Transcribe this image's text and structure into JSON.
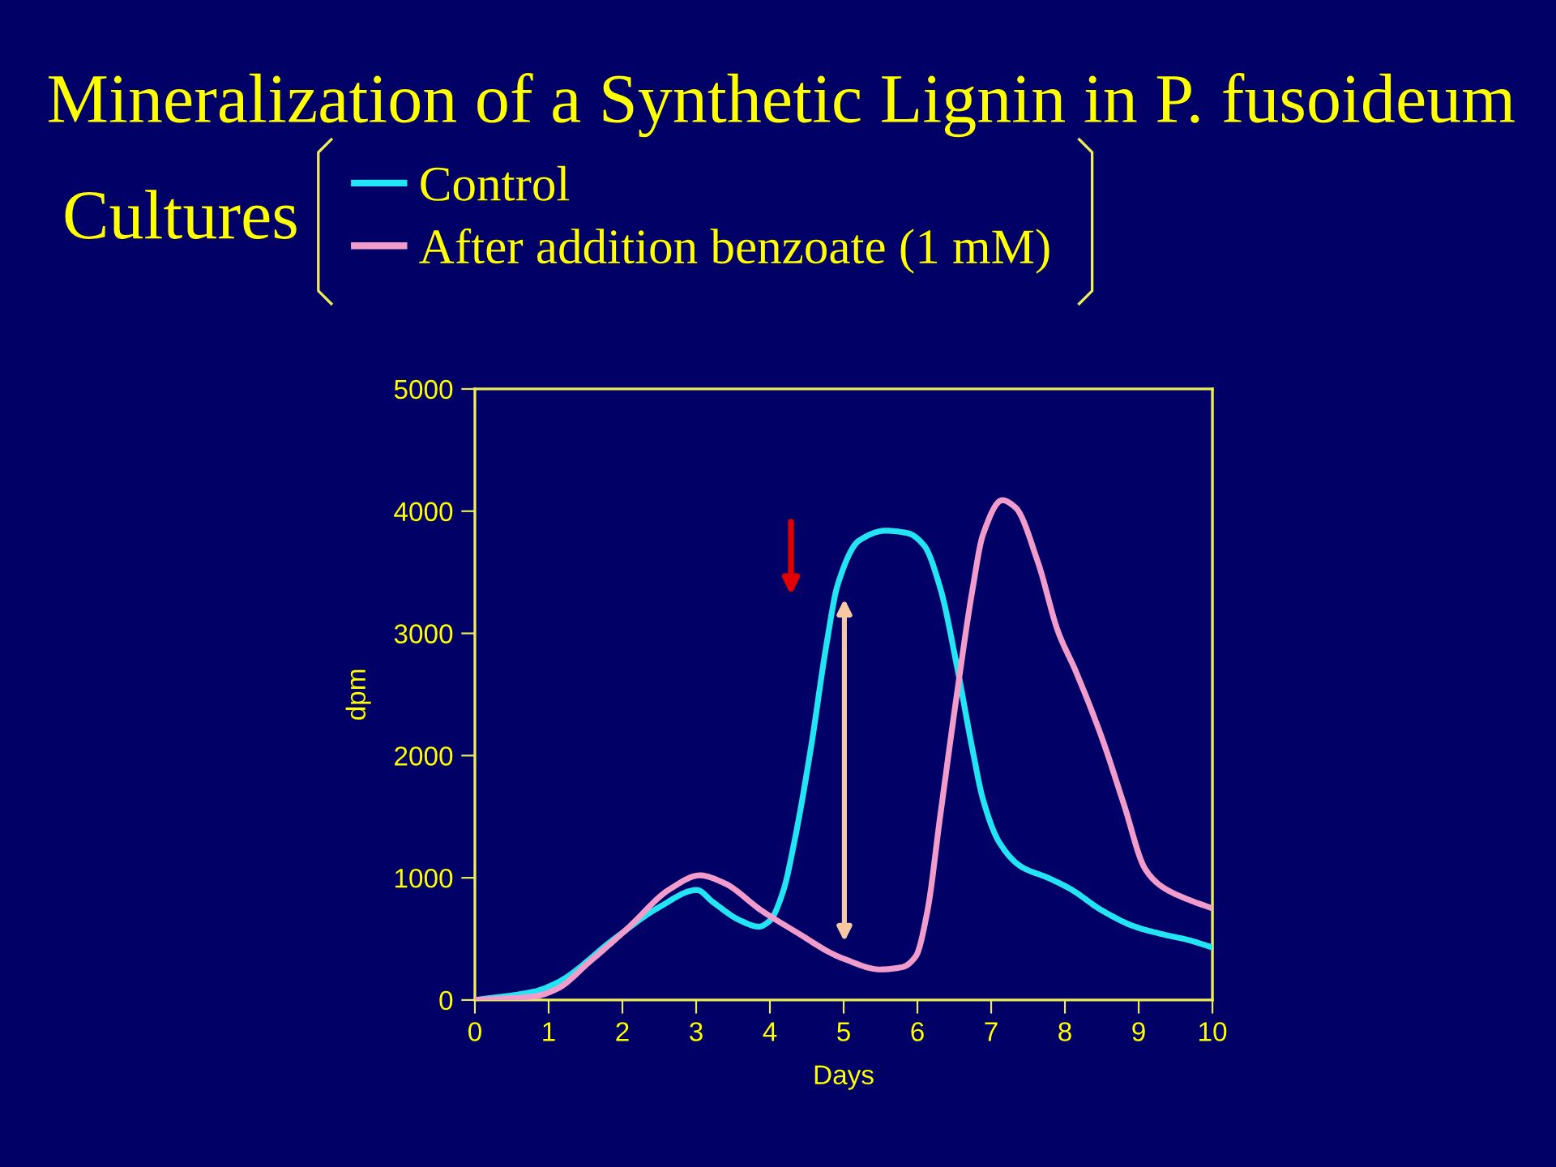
{
  "chart_data": {
    "type": "line",
    "title": "Mineralization of a Synthetic Lignin in P. fusoideum",
    "legend_title": "Cultures",
    "xlabel": "Days",
    "ylabel": "dpm",
    "xlim": [
      0,
      10
    ],
    "ylim": [
      0,
      5000
    ],
    "xticks": [
      0,
      1,
      2,
      3,
      4,
      5,
      6,
      7,
      8,
      9,
      10
    ],
    "yticks": [
      0,
      1000,
      2000,
      3000,
      4000,
      5000
    ],
    "grid": false,
    "legend": "top left",
    "line_style": "solid",
    "series": [
      {
        "name": "Control",
        "color": "#22e4f2",
        "x": [
          0,
          0.81,
          1.11,
          1.91,
          2.5,
          3.01,
          3.23,
          3.6,
          3.85,
          4.0,
          4.18,
          4.33,
          4.55,
          4.77,
          4.92,
          5.21,
          5.57,
          5.87,
          6.09,
          6.31,
          6.53,
          6.75,
          6.89,
          7.11,
          7.41,
          7.77,
          8.07,
          8.51,
          8.95,
          9.31,
          9.68,
          10
        ],
        "values": [
          0,
          70,
          140,
          510,
          760,
          900,
          800,
          650,
          600,
          650,
          890,
          1290,
          2040,
          2920,
          3400,
          3760,
          3840,
          3820,
          3720,
          3370,
          2750,
          2040,
          1640,
          1290,
          1090,
          1000,
          910,
          730,
          600,
          540,
          490,
          430
        ]
      },
      {
        "name": "After addition benzoate (1 mM)",
        "color": "#f29ccc",
        "x": [
          0,
          0.81,
          1.11,
          1.55,
          2.06,
          2.65,
          3.05,
          3.37,
          3.89,
          4.4,
          4.84,
          4.99,
          5.5,
          5.8,
          5.98,
          6.13,
          6.31,
          6.53,
          6.75,
          6.89,
          7.15,
          7.33,
          7.63,
          7.91,
          8.14,
          8.51,
          8.8,
          9.09,
          9.31,
          9.68,
          10
        ],
        "values": [
          0,
          30,
          90,
          310,
          580,
          910,
          1020,
          960,
          730,
          540,
          380,
          340,
          250,
          270,
          360,
          710,
          1510,
          2480,
          3370,
          3810,
          4090,
          4030,
          3590,
          3010,
          2700,
          2130,
          1600,
          1070,
          930,
          820,
          750
        ]
      }
    ]
  }
}
